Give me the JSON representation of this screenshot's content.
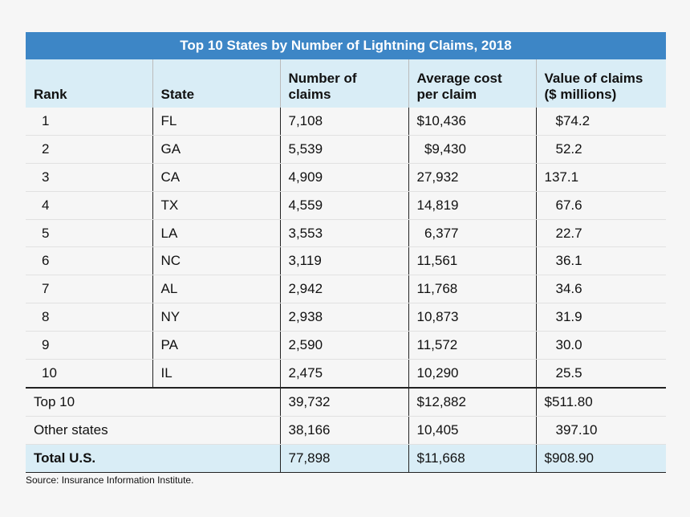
{
  "chart_data": {
    "type": "table",
    "title": "Top 10 States by Number of Lightning Claims, 2018",
    "columns": [
      "Rank",
      "State",
      "Number of claims",
      "Average cost per claim",
      "Value of claims ($ millions)"
    ],
    "header_lines": [
      [
        "Rank"
      ],
      [
        "State"
      ],
      [
        "Number of",
        "claims"
      ],
      [
        "Average cost",
        "per claim"
      ],
      [
        "Value of claims",
        "($ millions)"
      ]
    ],
    "rows": [
      [
        "1",
        "FL",
        "7,108",
        "$10,436",
        "$74.2"
      ],
      [
        "2",
        "GA",
        "5,539",
        "  $9,430",
        "52.2"
      ],
      [
        "3",
        "CA",
        "4,909",
        "27,932",
        "137.1"
      ],
      [
        "4",
        "TX",
        "4,559",
        "14,819",
        "67.6"
      ],
      [
        "5",
        "LA",
        "3,553",
        "  6,377",
        "22.7"
      ],
      [
        "6",
        "NC",
        "3,119",
        "11,561",
        "36.1"
      ],
      [
        "7",
        "AL",
        "2,942",
        "11,768",
        "34.6"
      ],
      [
        "8",
        "NY",
        "2,938",
        "10,873",
        "31.9"
      ],
      [
        "9",
        "PA",
        "2,590",
        "11,572",
        "30.0"
      ],
      [
        "10",
        "IL",
        "2,475",
        "10,290",
        "25.5"
      ]
    ],
    "summary_rows": [
      [
        "Top 10",
        "39,732",
        "$12,882",
        "$511.80"
      ],
      [
        "Other states",
        "38,166",
        "10,405",
        "397.10"
      ],
      [
        "Total U.S.",
        "77,898",
        "$11,668",
        "$908.90"
      ]
    ],
    "value_indent": {
      "value_column": [
        true,
        true,
        false,
        true,
        true,
        true,
        true,
        true,
        true,
        true
      ],
      "summary_value_column": [
        false,
        true,
        false
      ]
    }
  },
  "source": "Source: Insurance Information Institute.",
  "colors": {
    "title_bg": "#3d86c6",
    "header_bg": "#d9edf6",
    "page_bg": "#f6f6f6"
  }
}
